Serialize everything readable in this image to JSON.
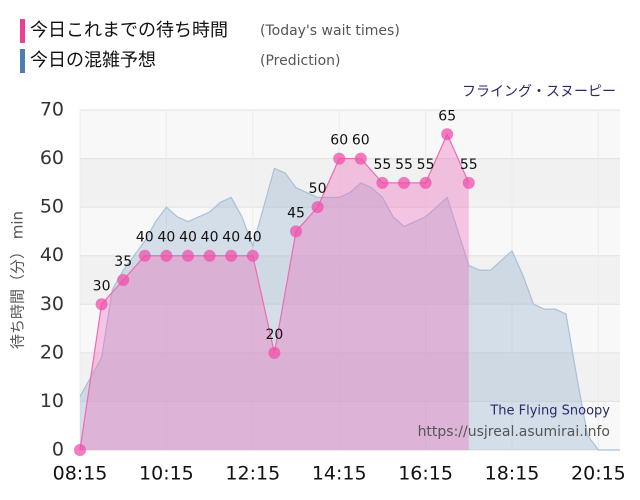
{
  "chart_data": {
    "type": "line",
    "subtitle": "フライング・スヌーピー",
    "ylabel": "待ち時間（分） min",
    "annotations": [
      "The Flying Snoopy",
      "https://usjreal.asumirai.info"
    ],
    "xlim": [
      "08:15",
      "20:45"
    ],
    "xticks": [
      "08:15",
      "10:15",
      "12:15",
      "14:15",
      "16:15",
      "18:15",
      "20:15"
    ],
    "ylim": [
      0,
      70
    ],
    "yticks": [
      0,
      10,
      20,
      30,
      40,
      50,
      60,
      70
    ],
    "grid": true,
    "series": [
      {
        "name": "今日これまでの待ち時間",
        "note": "(Today's wait times)",
        "color": "#ee3f96",
        "x": [
          "08:15",
          "08:45",
          "09:15",
          "09:45",
          "10:15",
          "10:45",
          "11:15",
          "11:45",
          "12:15",
          "12:45",
          "13:15",
          "13:45",
          "14:15",
          "14:45",
          "15:15",
          "15:45",
          "16:15",
          "16:45",
          "17:15"
        ],
        "values": [
          0,
          30,
          35,
          40,
          40,
          40,
          40,
          40,
          40,
          20,
          45,
          50,
          60,
          60,
          55,
          55,
          55,
          65,
          55
        ]
      },
      {
        "name": "今日の混雑予想",
        "note": "(Prediction)",
        "color": "#4a7fb0",
        "x": [
          "08:15",
          "08:30",
          "08:45",
          "09:00",
          "09:15",
          "09:30",
          "09:45",
          "10:00",
          "10:15",
          "10:30",
          "10:45",
          "11:00",
          "11:15",
          "11:30",
          "11:45",
          "12:00",
          "12:15",
          "12:30",
          "12:45",
          "13:00",
          "13:15",
          "13:30",
          "13:45",
          "14:00",
          "14:15",
          "14:30",
          "14:45",
          "15:00",
          "15:15",
          "15:30",
          "15:45",
          "16:00",
          "16:15",
          "16:30",
          "16:45",
          "17:00",
          "17:15",
          "17:30",
          "17:45",
          "18:00",
          "18:15",
          "18:30",
          "18:45",
          "19:00",
          "19:15",
          "19:30",
          "19:45",
          "20:00",
          "20:15",
          "20:30",
          "20:45"
        ],
        "values": [
          11,
          15,
          19,
          33,
          37,
          40,
          43,
          47,
          50,
          48,
          47,
          48,
          49,
          51,
          52,
          48,
          42,
          50,
          58,
          57,
          54,
          53,
          52,
          52,
          52,
          53,
          55,
          54,
          52,
          48,
          46,
          47,
          48,
          50,
          52,
          45,
          38,
          37,
          37,
          39,
          41,
          36,
          30,
          29,
          29,
          28,
          15,
          3,
          0,
          0,
          0
        ]
      }
    ]
  }
}
